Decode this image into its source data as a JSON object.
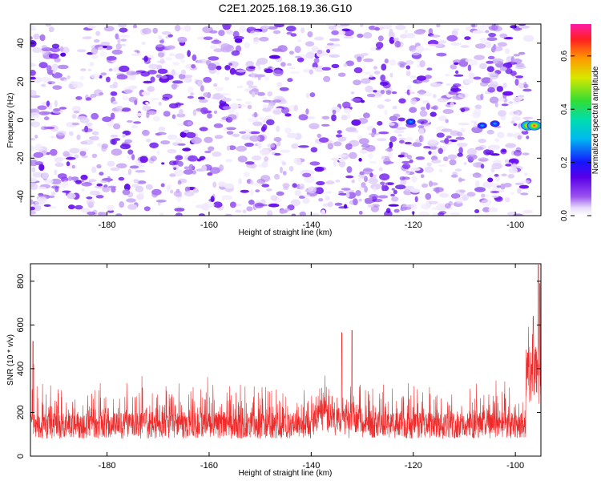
{
  "title": "C2E1.2025.168.19.36.G10",
  "chart_data": [
    {
      "type": "heatmap",
      "xlabel": "Height of straight line (km)",
      "ylabel": "Frequency (Hz)",
      "xlim": [
        -195,
        -95
      ],
      "ylim": [
        -50,
        50
      ],
      "x_ticks": [
        -180,
        -160,
        -140,
        -120,
        -100
      ],
      "y_ticks": [
        -40,
        -20,
        0,
        20,
        40
      ],
      "colorbar": {
        "label": "Normalized spectral amplitude",
        "range": [
          0,
          0.72
        ],
        "ticks": [
          0.0,
          0.2,
          0.4,
          0.6
        ],
        "tick_labels": [
          "0.0",
          "0.2",
          "0.4",
          "0.6"
        ]
      },
      "background_level": 0.05,
      "hotspots": [
        {
          "x": -120.5,
          "y": -1,
          "value": 0.22
        },
        {
          "x": -104,
          "y": -2,
          "value": 0.2
        },
        {
          "x": -106.5,
          "y": -3,
          "value": 0.16
        },
        {
          "x": -97.5,
          "y": -3,
          "value": 0.55
        },
        {
          "x": -96.3,
          "y": -3,
          "value": 0.72
        }
      ],
      "grid": false
    },
    {
      "type": "line",
      "xlabel": "Height of straight line (km)",
      "ylabel": "SNR (10 * v/v)",
      "xlim": [
        -195,
        -95
      ],
      "ylim": [
        0,
        880
      ],
      "x_ticks": [
        -180,
        -160,
        -140,
        -120,
        -100
      ],
      "y_ticks": [
        0,
        200,
        400,
        600,
        800
      ],
      "series_color": "#ee2b2b",
      "typical_range": [
        50,
        300
      ],
      "peaks": [
        {
          "x": -194.5,
          "y": 525
        },
        {
          "x": -134,
          "y": 565
        },
        {
          "x": -132,
          "y": 575
        },
        {
          "x": -96.5,
          "y": 640
        },
        {
          "x": -95.5,
          "y": 875
        },
        {
          "x": -95.2,
          "y": 790
        }
      ],
      "grid": false
    }
  ]
}
